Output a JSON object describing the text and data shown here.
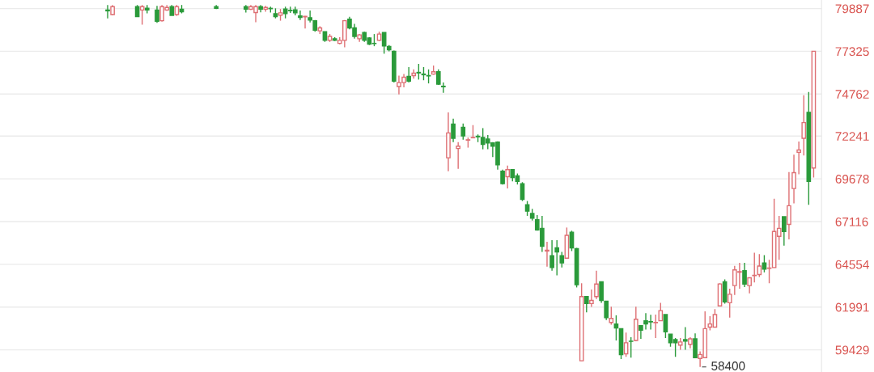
{
  "chart_data": {
    "type": "candlestick",
    "categories": [
      null,
      null,
      null,
      null,
      null,
      null,
      null,
      null,
      null,
      null,
      null,
      null,
      null,
      null,
      null,
      null,
      null,
      null,
      null,
      null,
      null,
      null,
      null,
      null,
      null,
      null,
      null,
      null,
      null,
      null,
      null,
      null,
      null,
      null,
      null,
      null,
      null,
      null,
      null,
      null,
      null,
      null,
      null,
      null,
      null,
      null,
      null,
      null,
      null,
      null,
      null,
      null,
      null,
      null,
      null,
      null,
      null,
      null,
      null,
      null,
      null,
      null,
      null,
      null,
      null,
      null,
      null,
      null,
      null,
      null,
      null,
      null,
      null,
      null,
      null,
      null,
      null,
      null,
      null,
      null,
      null,
      null,
      null,
      null,
      null,
      null,
      null,
      null,
      null,
      null,
      null,
      null,
      null,
      null,
      null,
      null,
      null,
      null,
      null,
      null,
      null,
      null,
      null,
      null,
      null,
      null,
      null,
      null,
      null,
      null,
      null,
      null,
      null,
      null,
      null,
      null,
      null,
      null,
      null,
      null,
      null,
      null,
      null,
      null,
      null,
      null,
      null,
      null,
      null,
      null,
      null,
      null,
      null,
      null,
      null,
      null,
      null,
      null,
      null,
      null,
      null,
      null,
      null,
      null
    ],
    "ohlc": [
      [
        79800,
        80100,
        79300,
        79750
      ],
      [
        79530,
        80100,
        79480,
        80000
      ],
      null,
      null,
      null,
      null,
      [
        80000,
        80100,
        79400,
        79400
      ],
      [
        79800,
        80100,
        78920,
        80000
      ],
      [
        79900,
        80100,
        79600,
        79800
      ],
      null,
      [
        79800,
        80050,
        79030,
        79130
      ],
      [
        79160,
        80100,
        79100,
        80000
      ],
      [
        79800,
        80100,
        79750,
        79950
      ],
      [
        80000,
        80100,
        79480,
        79480
      ],
      [
        79530,
        80100,
        79450,
        80000
      ],
      [
        79850,
        80100,
        79600,
        79700
      ],
      null,
      null,
      null,
      null,
      null,
      null,
      [
        80000,
        80100,
        79850,
        79900
      ],
      null,
      null,
      null,
      null,
      null,
      [
        80000,
        80100,
        79650,
        79850
      ],
      [
        79850,
        80100,
        79800,
        80000
      ],
      [
        79650,
        80100,
        79063,
        80000
      ],
      [
        80000,
        80100,
        79660,
        79850
      ],
      [
        79850,
        80050,
        79700,
        79950
      ],
      [
        79900,
        80000,
        79650,
        79880
      ],
      [
        79580,
        79900,
        79300,
        79400
      ],
      [
        79490,
        79860,
        79160,
        79630
      ],
      [
        79860,
        80000,
        79300,
        79580
      ],
      [
        79780,
        80000,
        79630,
        79760
      ],
      [
        79810,
        80000,
        79480,
        79630
      ],
      [
        79440,
        79770,
        79200,
        79350
      ],
      [
        79390,
        79440,
        78690,
        79420
      ],
      [
        79340,
        79770,
        79060,
        79200
      ],
      [
        79160,
        79200,
        78500,
        78590
      ],
      [
        78550,
        78830,
        78360,
        78730
      ],
      [
        78500,
        78500,
        77890,
        77980
      ],
      [
        77980,
        78360,
        77890,
        78220
      ],
      [
        78080,
        78170,
        77940,
        77980
      ],
      [
        77800,
        78170,
        77750,
        77980
      ],
      [
        77980,
        79200,
        77560,
        79160
      ],
      [
        79250,
        79390,
        78640,
        78730
      ],
      [
        78730,
        78970,
        78080,
        78220
      ],
      [
        78080,
        78360,
        77890,
        78310
      ],
      [
        78450,
        78500,
        77890,
        77980
      ],
      [
        78120,
        78170,
        77700,
        77750
      ],
      [
        77800,
        78360,
        77630,
        77790
      ],
      [
        77980,
        78500,
        77930,
        78360
      ],
      [
        78450,
        78450,
        77180,
        77650
      ],
      [
        77610,
        77700,
        77320,
        77420
      ],
      [
        77320,
        77370,
        75450,
        75540
      ],
      [
        75210,
        75870,
        74740,
        75450
      ],
      [
        75450,
        75960,
        75160,
        75770
      ],
      [
        75820,
        76380,
        75450,
        75540
      ],
      [
        75870,
        76240,
        75680,
        76010
      ],
      [
        76060,
        76570,
        75630,
        76030
      ],
      [
        75960,
        76380,
        75590,
        75920
      ],
      [
        75870,
        76240,
        75400,
        75850
      ],
      [
        75960,
        76470,
        75920,
        76100
      ],
      [
        76100,
        76240,
        75310,
        75350
      ],
      [
        75230,
        75450,
        74840,
        75200
      ],
      [
        70940,
        73660,
        70140,
        72430
      ],
      [
        72960,
        73280,
        71880,
        72110
      ],
      [
        71500,
        71880,
        70280,
        71640
      ],
      [
        72770,
        73000,
        72020,
        72250
      ],
      [
        72000,
        72160,
        71550,
        72020
      ],
      [
        72140,
        72900,
        72110,
        72160
      ],
      [
        72230,
        72340,
        71880,
        72200
      ],
      [
        72160,
        72720,
        71450,
        71740
      ],
      [
        72070,
        72300,
        71450,
        71830
      ],
      [
        71830,
        71880,
        70980,
        71640
      ],
      [
        71880,
        71930,
        70230,
        70520
      ],
      [
        70140,
        70230,
        69340,
        69390
      ],
      [
        69810,
        70470,
        69110,
        70230
      ],
      [
        70230,
        70230,
        69530,
        69760
      ],
      [
        69860,
        70000,
        69340,
        69530
      ],
      [
        69390,
        69480,
        68350,
        68450
      ],
      [
        68120,
        68350,
        67460,
        67740
      ],
      [
        67600,
        67880,
        67180,
        67320
      ],
      [
        67230,
        67510,
        66570,
        66620
      ],
      [
        66710,
        67460,
        65300,
        65630
      ],
      [
        65350,
        65910,
        64410,
        65400
      ],
      [
        65070,
        66000,
        64170,
        64360
      ],
      [
        65540,
        66000,
        63890,
        65300
      ],
      [
        65070,
        65300,
        64360,
        64640
      ],
      [
        64920,
        66760,
        64920,
        66290
      ],
      [
        66480,
        66570,
        65350,
        65540
      ],
      [
        65490,
        65540,
        63170,
        63330
      ],
      [
        58770,
        63420,
        58770,
        62620
      ],
      [
        62620,
        62620,
        61680,
        62200
      ],
      [
        62200,
        63050,
        62000,
        62390
      ],
      [
        62620,
        64170,
        62480,
        63370
      ],
      [
        63510,
        63510,
        62250,
        62390
      ],
      [
        62340,
        62340,
        61210,
        61360
      ],
      [
        61070,
        62020,
        60930,
        61310
      ],
      [
        60980,
        61500,
        59990,
        60740
      ],
      [
        60700,
        60700,
        58870,
        59140
      ],
      [
        59190,
        60460,
        59010,
        59850
      ],
      [
        59950,
        60180,
        58960,
        59940
      ],
      [
        59990,
        62020,
        59940,
        61260
      ],
      [
        60880,
        60880,
        60090,
        60600
      ],
      [
        61170,
        61630,
        60650,
        60980
      ],
      [
        61120,
        61530,
        60650,
        61100
      ],
      [
        61050,
        61540,
        60140,
        61070
      ],
      [
        61170,
        62250,
        61170,
        61780
      ],
      [
        61540,
        61540,
        60140,
        60510
      ],
      [
        60370,
        60370,
        59620,
        59850
      ],
      [
        60040,
        60140,
        59010,
        59850
      ],
      [
        59710,
        60140,
        59430,
        59900
      ],
      [
        60040,
        60790,
        59430,
        59950
      ],
      [
        59760,
        60180,
        59520,
        60090
      ],
      [
        60090,
        60420,
        58960,
        58960
      ],
      [
        58910,
        59340,
        58400,
        59150
      ],
      [
        58960,
        61730,
        58960,
        60700
      ],
      [
        60790,
        61450,
        60600,
        60980
      ],
      [
        60790,
        61870,
        60790,
        61540
      ],
      [
        62060,
        63420,
        62060,
        63380
      ],
      [
        63510,
        63650,
        62200,
        62300
      ],
      [
        62250,
        63090,
        61360,
        62760
      ],
      [
        63280,
        64460,
        62720,
        64220
      ],
      [
        64080,
        64640,
        63090,
        64110
      ],
      [
        64170,
        64640,
        63190,
        63370
      ],
      [
        63280,
        63750,
        62810,
        63750
      ],
      [
        63880,
        65250,
        63470,
        63900
      ],
      [
        63940,
        65160,
        63800,
        64450
      ],
      [
        64640,
        65110,
        64080,
        64270
      ],
      [
        64310,
        64830,
        63420,
        64330
      ],
      [
        64360,
        68490,
        64360,
        66520
      ],
      [
        66230,
        67460,
        64830,
        66710
      ],
      [
        67410,
        67410,
        65680,
        66520
      ],
      [
        66950,
        70090,
        66050,
        68070
      ],
      [
        69100,
        71130,
        68210,
        70050
      ],
      [
        71270,
        71920,
        69950,
        71410
      ],
      [
        72110,
        74690,
        71080,
        73050
      ],
      [
        73660,
        74880,
        68120,
        69530
      ],
      [
        70330,
        77325,
        69760,
        77325
      ]
    ],
    "colors": [
      "#2a9a3a",
      "#de6f73",
      null,
      null,
      null,
      null,
      "#2a9a3a",
      "#de6f73",
      "#2a9a3a",
      null,
      "#2a9a3a",
      "#de6f73",
      "#de6f73",
      "#2a9a3a",
      "#de6f73",
      "#2a9a3a",
      null,
      null,
      null,
      null,
      null,
      null,
      "#2a9a3a",
      null,
      null,
      null,
      null,
      null,
      "#2a9a3a",
      "#de6f73",
      "#de6f73",
      "#2a9a3a",
      "#de6f73",
      "#2a9a3a",
      "#2a9a3a",
      "#de6f73",
      "#2a9a3a",
      "#2a9a3a",
      "#2a9a3a",
      "#2a9a3a",
      "#de6f73",
      "#2a9a3a",
      "#2a9a3a",
      "#de6f73",
      "#2a9a3a",
      "#de6f73",
      "#2a9a3a",
      "#de6f73",
      "#de6f73",
      "#2a9a3a",
      "#2a9a3a",
      "#de6f73",
      "#2a9a3a",
      "#2a9a3a",
      "#2a9a3a",
      "#de6f73",
      "#2a9a3a",
      "#2a9a3a",
      "#2a9a3a",
      "#de6f73",
      "#de6f73",
      "#2a9a3a",
      "#de6f73",
      "#2a9a3a",
      "#2a9a3a",
      "#2a9a3a",
      "#de6f73",
      "#2a9a3a",
      "#2a9a3a",
      "#de6f73",
      "#2a9a3a",
      "#de6f73",
      "#2a9a3a",
      "#de6f73",
      "#de6f73",
      "#2a9a3a",
      "#2a9a3a",
      "#2a9a3a",
      "#2a9a3a",
      "#2a9a3a",
      "#2a9a3a",
      "#de6f73",
      "#2a9a3a",
      "#2a9a3a",
      "#2a9a3a",
      "#2a9a3a",
      "#2a9a3a",
      "#2a9a3a",
      "#2a9a3a",
      "#de6f73",
      "#2a9a3a",
      "#2a9a3a",
      "#2a9a3a",
      "#de6f73",
      "#2a9a3a",
      "#2a9a3a",
      "#de6f73",
      "#2a9a3a",
      "#de6f73",
      "#de6f73",
      "#2a9a3a",
      "#2a9a3a",
      "#de6f73",
      "#2a9a3a",
      "#2a9a3a",
      "#de6f73",
      "#2a9a3a",
      "#de6f73",
      "#2a9a3a",
      "#2a9a3a",
      "#2a9a3a",
      "#de6f73",
      "#de6f73",
      "#2a9a3a",
      "#2a9a3a",
      "#2a9a3a",
      "#de6f73",
      "#2a9a3a",
      "#de6f73",
      "#2a9a3a",
      "#de6f73",
      "#de6f73",
      "#de6f73",
      "#de6f73",
      "#de6f73",
      "#2a9a3a",
      "#de6f73",
      "#de6f73",
      "#de6f73",
      "#2a9a3a",
      "#de6f73",
      "#de6f73",
      "#de6f73",
      "#2a9a3a",
      "#de6f73",
      "#de6f73",
      "#de6f73",
      "#2a9a3a",
      "#de6f73",
      "#de6f73",
      "#de6f73",
      "#de6f73",
      "#2a9a3a",
      "#de6f73"
    ],
    "ylim": [
      58100,
      80400
    ],
    "yticks": [
      59429,
      61991,
      64554,
      67116,
      69678,
      72241,
      74762,
      77325,
      79887
    ],
    "grid": "y",
    "tick_labels": "y",
    "annotations": [
      "58400"
    ]
  }
}
